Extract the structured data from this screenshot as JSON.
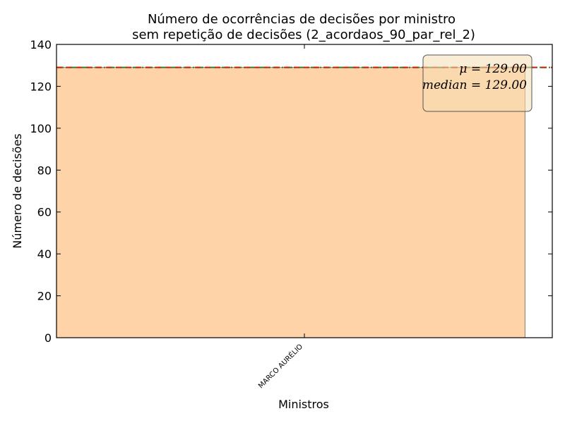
{
  "chart_data": {
    "type": "bar",
    "title_line1": "Número de ocorrências de decisões por ministro",
    "title_line2": "sem repetição de decisões (2_acordaos_90_par_rel_2)",
    "xlabel": "Ministros",
    "ylabel": "Número de decisões",
    "categories": [
      "MARCO AURÉLIO"
    ],
    "values": [
      129
    ],
    "ylim": [
      0,
      140
    ],
    "yticks": [
      "0",
      "20",
      "40",
      "60",
      "80",
      "100",
      "120",
      "140"
    ],
    "grid": false,
    "mean": 129.0,
    "median": 129.0,
    "legend_placement": "top-right",
    "stats_box": {
      "mean_text": "μ = 129.00",
      "median_text": "median = 129.00"
    },
    "colors": {
      "bar_fill": "#fdd3a7",
      "bar_edge": "#8b7a6a",
      "mean_line": "#cc2200",
      "median_line": "#2e7d32",
      "box_fill": "#f5deb3"
    }
  }
}
